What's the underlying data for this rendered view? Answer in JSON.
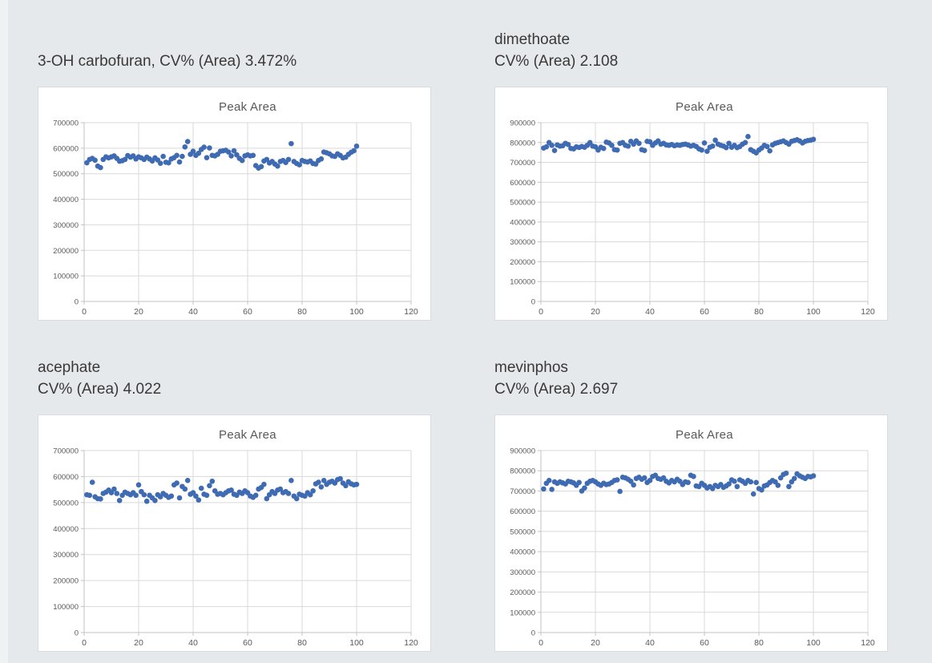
{
  "colors": {
    "background": "#e6e9eb",
    "edge_strip": "#eff2f3",
    "panel": "#ffffff",
    "panel_border": "#d9dcde",
    "gridline": "#d9d9d9",
    "axis_line": "#bfc3c5",
    "tick_label": "#595959",
    "chart_title": "#595959",
    "card_title": "#3b3838",
    "point": "#3f6bb3"
  },
  "shared_x": [
    1,
    2,
    3,
    4,
    5,
    6,
    7,
    8,
    9,
    10,
    11,
    12,
    13,
    14,
    15,
    16,
    17,
    18,
    19,
    20,
    21,
    22,
    23,
    24,
    25,
    26,
    27,
    28,
    29,
    30,
    31,
    32,
    33,
    34,
    35,
    36,
    37,
    38,
    39,
    40,
    41,
    42,
    43,
    44,
    45,
    46,
    47,
    48,
    49,
    50,
    51,
    52,
    53,
    54,
    55,
    56,
    57,
    58,
    59,
    60,
    61,
    62,
    63,
    64,
    65,
    66,
    67,
    68,
    69,
    70,
    71,
    72,
    73,
    74,
    75,
    76,
    77,
    78,
    79,
    80,
    81,
    82,
    83,
    84,
    85,
    86,
    87,
    88,
    89,
    90,
    91,
    92,
    93,
    94,
    95,
    96,
    97,
    98,
    99,
    100
  ],
  "chart_data": [
    {
      "type": "scatter",
      "name": "3-OH carbofuran",
      "label_line1": "3-OH carbofuran, CV% (Area) 3.472%",
      "cv_percent_area": 3.472,
      "title": "Peak Area",
      "xlim": [
        0,
        120
      ],
      "ylim": [
        0,
        700000
      ],
      "xticks": [
        0,
        20,
        40,
        60,
        80,
        100,
        120
      ],
      "yticks": [
        0,
        100000,
        200000,
        300000,
        400000,
        500000,
        600000,
        700000
      ],
      "grid": true,
      "legend": "none",
      "y": [
        543000,
        556000,
        560000,
        553000,
        530000,
        524000,
        556000,
        566000,
        562000,
        566000,
        570000,
        560000,
        549000,
        551000,
        556000,
        571000,
        565000,
        570000,
        558000,
        566000,
        562000,
        556000,
        565000,
        558000,
        550000,
        562000,
        554000,
        541000,
        568000,
        545000,
        543000,
        558000,
        563000,
        572000,
        546000,
        568000,
        605000,
        626000,
        576000,
        588000,
        572000,
        580000,
        595000,
        604000,
        563000,
        601000,
        572000,
        570000,
        576000,
        588000,
        590000,
        592000,
        585000,
        570000,
        590000,
        574000,
        560000,
        552000,
        570000,
        574000,
        570000,
        572000,
        532000,
        522000,
        528000,
        550000,
        556000,
        542000,
        548000,
        538000,
        530000,
        548000,
        552000,
        544000,
        556000,
        618000,
        548000,
        540000,
        535000,
        552000,
        548000,
        546000,
        550000,
        540000,
        538000,
        552000,
        558000,
        585000,
        582000,
        578000,
        570000,
        568000,
        578000,
        572000,
        562000,
        565000,
        576000,
        584000,
        590000,
        608000
      ]
    },
    {
      "type": "scatter",
      "name": "dimethoate",
      "label_line1": "dimethoate",
      "label_line2": "CV% (Area) 2.108",
      "cv_percent_area": 2.108,
      "title": "Peak Area",
      "xlim": [
        0,
        120
      ],
      "ylim": [
        0,
        900000
      ],
      "xticks": [
        0,
        20,
        40,
        60,
        80,
        100,
        120
      ],
      "yticks": [
        0,
        100000,
        200000,
        300000,
        400000,
        500000,
        600000,
        700000,
        800000,
        900000
      ],
      "grid": true,
      "legend": "none",
      "y": [
        772000,
        778000,
        800000,
        786000,
        760000,
        788000,
        782000,
        784000,
        796000,
        790000,
        770000,
        768000,
        778000,
        775000,
        780000,
        776000,
        786000,
        800000,
        782000,
        778000,
        762000,
        776000,
        770000,
        802000,
        798000,
        786000,
        764000,
        762000,
        796000,
        800000,
        786000,
        782000,
        806000,
        792000,
        808000,
        796000,
        764000,
        760000,
        806000,
        804000,
        786000,
        798000,
        808000,
        792000,
        796000,
        788000,
        786000,
        790000,
        784000,
        788000,
        786000,
        790000,
        792000,
        788000,
        782000,
        786000,
        780000,
        768000,
        762000,
        798000,
        756000,
        776000,
        782000,
        812000,
        792000,
        786000,
        782000,
        774000,
        796000,
        776000,
        786000,
        774000,
        780000,
        792000,
        800000,
        830000,
        764000,
        756000,
        748000,
        762000,
        772000,
        786000,
        780000,
        758000,
        788000,
        796000,
        800000,
        804000,
        808000,
        800000,
        792000,
        806000,
        810000,
        814000,
        808000,
        798000,
        806000,
        810000,
        812000,
        816000
      ]
    },
    {
      "type": "scatter",
      "name": "acephate",
      "label_line1": "acephate",
      "label_line2": "CV% (Area) 4.022",
      "cv_percent_area": 4.022,
      "title": "Peak Area",
      "xlim": [
        0,
        120
      ],
      "ylim": [
        0,
        700000
      ],
      "xticks": [
        0,
        20,
        40,
        60,
        80,
        100,
        120
      ],
      "yticks": [
        0,
        100000,
        200000,
        300000,
        400000,
        500000,
        600000,
        700000
      ],
      "grid": true,
      "legend": "none",
      "y": [
        530000,
        528000,
        578000,
        522000,
        515000,
        514000,
        535000,
        540000,
        548000,
        538000,
        552000,
        535000,
        508000,
        528000,
        540000,
        535000,
        530000,
        538000,
        528000,
        568000,
        542000,
        530000,
        505000,
        528000,
        518000,
        508000,
        530000,
        522000,
        535000,
        528000,
        520000,
        525000,
        568000,
        575000,
        518000,
        562000,
        552000,
        585000,
        532000,
        538000,
        525000,
        510000,
        555000,
        532000,
        528000,
        565000,
        582000,
        545000,
        532000,
        535000,
        530000,
        538000,
        545000,
        548000,
        532000,
        528000,
        540000,
        535000,
        545000,
        538000,
        525000,
        520000,
        528000,
        552000,
        558000,
        570000,
        515000,
        530000,
        542000,
        535000,
        548000,
        552000,
        538000,
        542000,
        535000,
        585000,
        525000,
        515000,
        532000,
        528000,
        525000,
        538000,
        530000,
        545000,
        572000,
        578000,
        560000,
        585000,
        570000,
        578000,
        582000,
        575000,
        588000,
        592000,
        575000,
        565000,
        580000,
        572000,
        568000,
        570000
      ]
    },
    {
      "type": "scatter",
      "name": "mevinphos",
      "label_line1": "mevinphos",
      "label_line2": "CV% (Area) 2.697",
      "cv_percent_area": 2.697,
      "title": "Peak Area",
      "xlim": [
        0,
        120
      ],
      "ylim": [
        0,
        900000
      ],
      "xticks": [
        0,
        20,
        40,
        60,
        80,
        100,
        120
      ],
      "yticks": [
        0,
        100000,
        200000,
        300000,
        400000,
        500000,
        600000,
        700000,
        800000,
        900000
      ],
      "grid": true,
      "legend": "none",
      "y": [
        710000,
        738000,
        752000,
        708000,
        745000,
        738000,
        745000,
        740000,
        735000,
        748000,
        745000,
        740000,
        728000,
        742000,
        700000,
        715000,
        738000,
        748000,
        752000,
        745000,
        735000,
        728000,
        738000,
        732000,
        735000,
        742000,
        752000,
        755000,
        698000,
        768000,
        765000,
        758000,
        748000,
        730000,
        762000,
        768000,
        758000,
        765000,
        742000,
        752000,
        772000,
        778000,
        762000,
        758000,
        765000,
        748000,
        740000,
        752000,
        745000,
        758000,
        748000,
        732000,
        745000,
        742000,
        778000,
        772000,
        725000,
        722000,
        738000,
        728000,
        715000,
        722000,
        712000,
        728000,
        722000,
        732000,
        718000,
        725000,
        735000,
        755000,
        748000,
        722000,
        755000,
        748000,
        738000,
        752000,
        745000,
        685000,
        742000,
        712000,
        705000,
        725000,
        730000,
        742000,
        752000,
        745000,
        728000,
        765000,
        782000,
        788000,
        722000,
        745000,
        762000,
        785000,
        775000,
        768000,
        762000,
        772000,
        770000,
        775000
      ]
    }
  ]
}
